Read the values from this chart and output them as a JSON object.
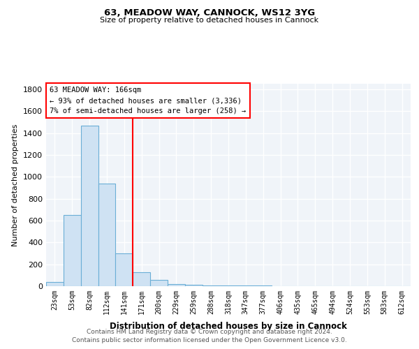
{
  "title1": "63, MEADOW WAY, CANNOCK, WS12 3YG",
  "title2": "Size of property relative to detached houses in Cannock",
  "xlabel": "Distribution of detached houses by size in Cannock",
  "ylabel": "Number of detached properties",
  "categories": [
    "23sqm",
    "53sqm",
    "82sqm",
    "112sqm",
    "141sqm",
    "171sqm",
    "200sqm",
    "229sqm",
    "259sqm",
    "288sqm",
    "318sqm",
    "347sqm",
    "377sqm",
    "406sqm",
    "435sqm",
    "465sqm",
    "494sqm",
    "524sqm",
    "553sqm",
    "583sqm",
    "612sqm"
  ],
  "values": [
    40,
    650,
    1470,
    940,
    300,
    130,
    60,
    20,
    10,
    5,
    5,
    5,
    5,
    0,
    0,
    0,
    0,
    0,
    0,
    0,
    0
  ],
  "bar_color": "#cfe2f3",
  "bar_edge_color": "#6aaed6",
  "red_line_x": 4.5,
  "annotation_text1": "63 MEADOW WAY: 166sqm",
  "annotation_text2": "← 93% of detached houses are smaller (3,336)",
  "annotation_text3": "7% of semi-detached houses are larger (258) →",
  "annotation_box_color": "white",
  "annotation_box_edge": "red",
  "footer1": "Contains HM Land Registry data © Crown copyright and database right 2024.",
  "footer2": "Contains public sector information licensed under the Open Government Licence v3.0.",
  "ylim": [
    0,
    1850
  ],
  "yticks": [
    0,
    200,
    400,
    600,
    800,
    1000,
    1200,
    1400,
    1600,
    1800
  ],
  "figsize": [
    6.0,
    5.0
  ],
  "dpi": 100
}
